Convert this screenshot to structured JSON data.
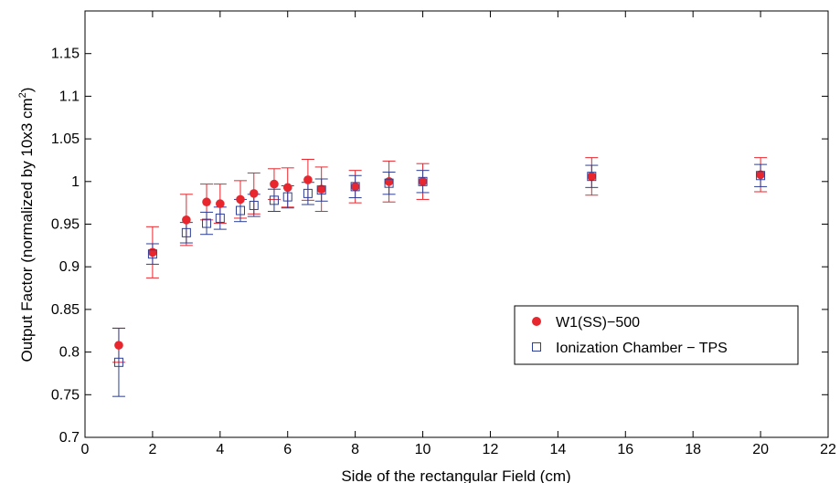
{
  "chart_data": {
    "type": "scatter",
    "title": "",
    "xlabel": "Side of the rectangular Field (cm)",
    "ylabel_main": "Output Factor (normalized by 10x3 cm",
    "ylabel_sup": "2",
    "ylabel_close": ")",
    "xlim": [
      0,
      22
    ],
    "ylim": [
      0.7,
      1.2
    ],
    "xticks": [
      0,
      2,
      4,
      6,
      8,
      10,
      12,
      14,
      16,
      18,
      20,
      22
    ],
    "xtick_labels": [
      "0",
      "2",
      "4",
      "6",
      "8",
      "10",
      "12",
      "14",
      "16",
      "18",
      "20",
      "22"
    ],
    "yticks": [
      0.7,
      0.75,
      0.8,
      0.85,
      0.9,
      0.95,
      1,
      1.05,
      1.1,
      1.15
    ],
    "ytick_labels": [
      "0.7",
      "0.75",
      "0.8",
      "0.85",
      "0.9",
      "0.95",
      "1",
      "1.05",
      "1.1",
      "1.15"
    ],
    "grid": false,
    "legend_position": "lower-right",
    "series": [
      {
        "name": "W1(SS)−500",
        "marker": "filled-circle",
        "color": "#e8262d",
        "points": [
          {
            "x": 1,
            "y": 0.808,
            "err": 0.02
          },
          {
            "x": 2,
            "y": 0.917,
            "err": 0.03
          },
          {
            "x": 3,
            "y": 0.955,
            "err": 0.03
          },
          {
            "x": 3.6,
            "y": 0.976,
            "err": 0.021
          },
          {
            "x": 4,
            "y": 0.974,
            "err": 0.023
          },
          {
            "x": 4.6,
            "y": 0.979,
            "err": 0.022
          },
          {
            "x": 5,
            "y": 0.986,
            "err": 0.024
          },
          {
            "x": 5.6,
            "y": 0.997,
            "err": 0.018
          },
          {
            "x": 6,
            "y": 0.993,
            "err": 0.023
          },
          {
            "x": 6.6,
            "y": 1.002,
            "err": 0.024
          },
          {
            "x": 7,
            "y": 0.991,
            "err": 0.026
          },
          {
            "x": 8,
            "y": 0.994,
            "err": 0.019
          },
          {
            "x": 9,
            "y": 1.0,
            "err": 0.024
          },
          {
            "x": 10,
            "y": 1.0,
            "err": 0.021
          },
          {
            "x": 15,
            "y": 1.006,
            "err": 0.022
          },
          {
            "x": 20,
            "y": 1.008,
            "err": 0.02
          }
        ]
      },
      {
        "name": "Ionization Chamber − TPS",
        "marker": "open-square",
        "color": "#2c3e96",
        "points": [
          {
            "x": 1,
            "y": 0.788,
            "err": 0.04
          },
          {
            "x": 2,
            "y": 0.915,
            "err": 0.012
          },
          {
            "x": 3,
            "y": 0.94,
            "err": 0.012
          },
          {
            "x": 3.6,
            "y": 0.951,
            "err": 0.013
          },
          {
            "x": 4,
            "y": 0.957,
            "err": 0.013
          },
          {
            "x": 4.6,
            "y": 0.966,
            "err": 0.013
          },
          {
            "x": 5,
            "y": 0.972,
            "err": 0.013
          },
          {
            "x": 5.6,
            "y": 0.978,
            "err": 0.013
          },
          {
            "x": 6,
            "y": 0.982,
            "err": 0.013
          },
          {
            "x": 6.6,
            "y": 0.986,
            "err": 0.013
          },
          {
            "x": 7,
            "y": 0.99,
            "err": 0.013
          },
          {
            "x": 8,
            "y": 0.994,
            "err": 0.013
          },
          {
            "x": 9,
            "y": 0.998,
            "err": 0.013
          },
          {
            "x": 10,
            "y": 1.0,
            "err": 0.013
          },
          {
            "x": 15,
            "y": 1.006,
            "err": 0.013
          },
          {
            "x": 20,
            "y": 1.007,
            "err": 0.013
          }
        ]
      }
    ]
  }
}
